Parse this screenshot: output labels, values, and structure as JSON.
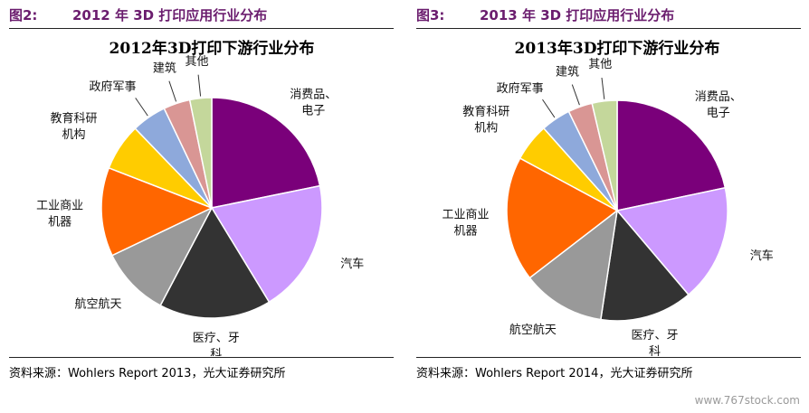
{
  "figures": [
    {
      "number": "图2:",
      "heading": "2012 年 3D 打印应用行业分布",
      "source": "资料来源：Wohlers Report 2013，光大证券研究所"
    },
    {
      "number": "图3:",
      "heading": "2013 年 3D 打印应用行业分布",
      "source": "资料来源：Wohlers Report 2014，光大证券研究所"
    }
  ],
  "watermark": "www.767stock.com",
  "chart_data": [
    {
      "type": "pie",
      "title": "2012年3D打印下游行业分布",
      "categories": [
        [
          "消费品、",
          "电子"
        ],
        [
          "汽车"
        ],
        [
          "医疗、牙",
          "科"
        ],
        [
          "航空航天"
        ],
        [
          "工业商业",
          "机器"
        ],
        [
          "教育科研",
          "机构"
        ],
        [
          "政府军事"
        ],
        [
          "建筑"
        ],
        [
          "其他"
        ]
      ],
      "values": [
        21.8,
        19.5,
        16.4,
        10.2,
        13.0,
        6.9,
        5.1,
        3.9,
        3.2
      ],
      "colors": [
        "#7a007a",
        "#cc99ff",
        "#333333",
        "#999999",
        "#ff6600",
        "#ffcc00",
        "#8ea9db",
        "#d99694",
        "#c4d79b"
      ]
    },
    {
      "type": "pie",
      "title": "2013年3D打印下游行业分布",
      "categories": [
        [
          "消费品、",
          "电子"
        ],
        [
          "汽车"
        ],
        [
          "医疗、牙",
          "科"
        ],
        [
          "航空航天"
        ],
        [
          "工业商业",
          "机器"
        ],
        [
          "教育科研",
          "机构"
        ],
        [
          "政府军事"
        ],
        [
          "建筑"
        ],
        [
          "其他"
        ]
      ],
      "values": [
        21.9,
        17.3,
        13.7,
        12.3,
        18.5,
        5.6,
        4.4,
        3.6,
        3.7
      ],
      "colors": [
        "#7a007a",
        "#cc99ff",
        "#333333",
        "#999999",
        "#ff6600",
        "#ffcc00",
        "#8ea9db",
        "#d99694",
        "#c4d79b"
      ]
    }
  ]
}
